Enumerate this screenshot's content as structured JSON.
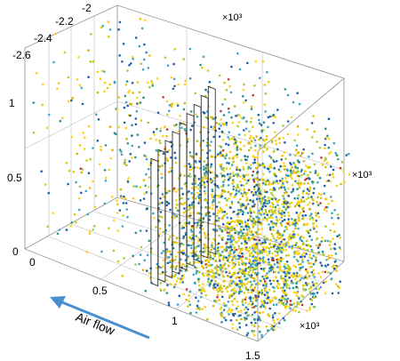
{
  "chart_data": {
    "type": "scatter",
    "title": "",
    "axes": {
      "x": {
        "ticks": [
          "0",
          "0.5",
          "1",
          "1.5"
        ],
        "multiplier": "×10³"
      },
      "y": {
        "ticks": [
          "0",
          "0.5",
          "1"
        ],
        "multiplier": "×10³"
      },
      "z": {
        "ticks": [
          "-2.6",
          "-2.4",
          "-2.2",
          "-2"
        ],
        "multiplier": "×10³"
      }
    },
    "annotation": {
      "text": "Air flow",
      "direction": "toward decreasing x",
      "color": "#4a8fcf"
    },
    "heat_sink": {
      "fin_count": 9
    },
    "point_count": 3000,
    "density": "uniform sparse background, dense cloud downstream of the fins",
    "palette": [
      "#ffd11a",
      "#e6c700",
      "#a8c83a",
      "#3ca5c7",
      "#1f5fa8",
      "#2b8f8f",
      "#d4b400",
      "#c0392b"
    ]
  }
}
